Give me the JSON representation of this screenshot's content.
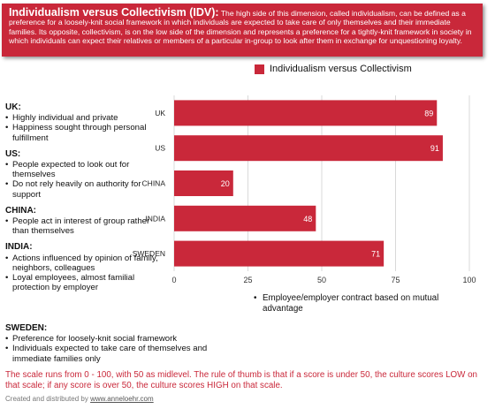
{
  "banner": {
    "title": "Individualism versus Collectivism (IDV):",
    "text": "The high side of this dimension, called individualism, can be defined as a preference for a loosely-knit social framework in which individuals are expected to take care of only themselves and their immediate families. Its opposite, collectivism, is on the low side of the dimension and represents a preference for a tightly-knit framework in society in which individuals can expect their relatives or members of a particular in-group to look after them in exchange for unquestioning loyalty."
  },
  "colors": {
    "accent": "#c9283a"
  },
  "notes": [
    {
      "heading": "UK:",
      "items": [
        "Highly individual and private",
        "Happiness sought through personal fulfillment"
      ]
    },
    {
      "heading": "US:",
      "items": [
        "People expected to look out for themselves",
        "Do not rely heavily on authority for support"
      ]
    },
    {
      "heading": "CHINA:",
      "items": [
        "People act in interest of group rather than themselves"
      ]
    },
    {
      "heading": "INDIA:",
      "items": [
        "Actions influenced by opinion of family, neighbors, colleagues",
        "Loyal employees, almost familial protection by employer"
      ]
    }
  ],
  "india_extra": "Employee/employer contract based on mutual advantage",
  "sweden": {
    "heading": "SWEDEN:",
    "items": [
      "Preference for loosely-knit social framework",
      "Individuals expected to take care of themselves and immediate families only"
    ]
  },
  "scale_note": "The scale runs from 0 - 100, with 50 as midlevel. The rule of thumb is that if a score is under 50, the culture scores LOW on that scale; if any score is over 50, the culture scores HIGH on that scale.",
  "credit": {
    "prefix": "Created and distributed by",
    "link": "www.anneloehr.com"
  },
  "chart_data": {
    "type": "bar",
    "orientation": "horizontal",
    "categories": [
      "UK",
      "US",
      "CHINA",
      "INDIA",
      "SWEDEN"
    ],
    "series": [
      {
        "name": "Individualism versus Collectivism",
        "values": [
          89,
          91,
          20,
          48,
          71
        ]
      }
    ],
    "xlim": [
      0,
      100
    ],
    "ticks": [
      0,
      25,
      50,
      75,
      100
    ],
    "grid": true,
    "legend": "top"
  }
}
